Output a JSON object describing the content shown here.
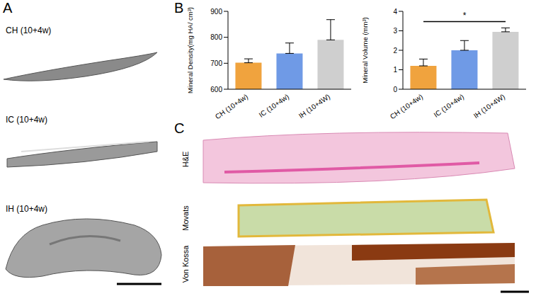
{
  "panels": [
    {
      "label": "A",
      "images": [
        "CH (10+4w)",
        "IC (10+4w)",
        "IH (10+4w)"
      ]
    },
    {
      "label": "B"
    },
    {
      "label": "C",
      "stains": [
        "H&E",
        "Movats",
        "Von Kossa"
      ]
    }
  ],
  "chart_data": [
    {
      "type": "bar",
      "y_label": "Mineral Density(mg HA/ cm³)",
      "categories": [
        "CH (10+4w)",
        "IC (10+4w)",
        "IH (10+4W)"
      ],
      "values": [
        702,
        738,
        790
      ],
      "errors": [
        15,
        40,
        78
      ],
      "colors": [
        "#f0a33e",
        "#6f9ae6",
        "#cfcfcf"
      ],
      "ylim": [
        600,
        900
      ],
      "yticks": [
        600,
        700,
        800,
        900
      ],
      "grid": false
    },
    {
      "type": "bar",
      "y_label": "Mineral Volume (mm³)",
      "categories": [
        "CH (10+4w)",
        "IC (10+4w)",
        "IH (10+4W)"
      ],
      "values": [
        1.2,
        2.0,
        2.95
      ],
      "errors": [
        0.35,
        0.5,
        0.2
      ],
      "colors": [
        "#f0a33e",
        "#6f9ae6",
        "#cfcfcf"
      ],
      "ylim": [
        0,
        4
      ],
      "yticks": [
        0,
        1,
        2,
        3,
        4
      ],
      "grid": false,
      "annotations": [
        {
          "text": "*",
          "from": "CH (10+4w)",
          "to": "IH (10+4W)"
        }
      ]
    }
  ]
}
